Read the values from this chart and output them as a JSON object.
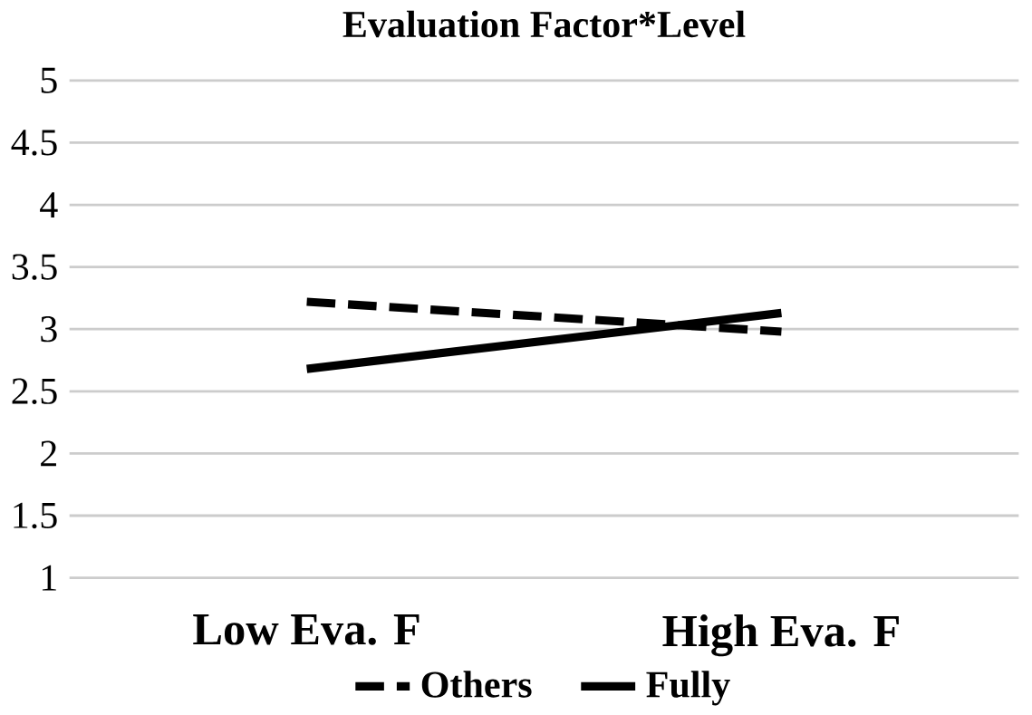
{
  "chart_data": {
    "type": "line",
    "title": "Evaluation Factor*Level",
    "categories": [
      "Low Eva. F",
      "High Eva. F"
    ],
    "series": [
      {
        "name": "Others",
        "color": "#000000",
        "line_style": "dashed",
        "values": [
          3.22,
          2.98
        ]
      },
      {
        "name": "Fully",
        "color": "#000000",
        "line_style": "solid",
        "values": [
          2.68,
          3.13
        ]
      }
    ],
    "ylim": [
      1,
      5
    ],
    "yticks": [
      1,
      1.5,
      2,
      2.5,
      3,
      3.5,
      4,
      4.5,
      5
    ],
    "grid": "y",
    "legend": "bottom",
    "marker": "none"
  }
}
